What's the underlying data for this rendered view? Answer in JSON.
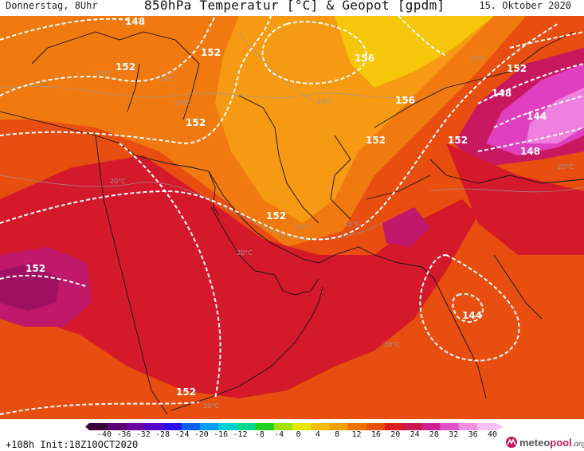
{
  "header": {
    "left": "Donnerstag, 8Uhr",
    "title": "850hPa Temperatur [°C] & Geopot [gpdm]",
    "right": "15. Oktober 2020"
  },
  "footer": {
    "run_info": "+108h Init:18Z10OCT2020",
    "logo": {
      "prefix": "meteo",
      "accent": "pool",
      "tld": ".org"
    }
  },
  "geopot_labels": [
    "148",
    "152",
    "152",
    "156",
    "156",
    "152",
    "152",
    "148",
    "152",
    "144",
    "152",
    "148",
    "152",
    "152",
    "144",
    "152"
  ],
  "temp_labels": [
    "10°C",
    "10°C",
    "20°C",
    "10°C",
    "10°C",
    "20°C",
    "20°C",
    "20°C",
    "20°C",
    "20°C",
    "10°C",
    "20°C"
  ],
  "colorbar": {
    "ticks": [
      "-40",
      "-36",
      "-32",
      "-28",
      "-24",
      "-20",
      "-16",
      "-12",
      "-8",
      "-4",
      "0",
      "4",
      "8",
      "12",
      "16",
      "20",
      "24",
      "28",
      "32",
      "36",
      "40"
    ],
    "colors": [
      "#3a003a",
      "#5a0070",
      "#6a00a0",
      "#5000c8",
      "#2a10e6",
      "#1060f0",
      "#00a0f0",
      "#00d0d0",
      "#00d890",
      "#20d020",
      "#a0e000",
      "#e6e600",
      "#f0c000",
      "#f0a000",
      "#f07000",
      "#e85010",
      "#d82020",
      "#c81850",
      "#d02090",
      "#e050c8",
      "#f090e0",
      "#f6c0f0"
    ]
  }
}
